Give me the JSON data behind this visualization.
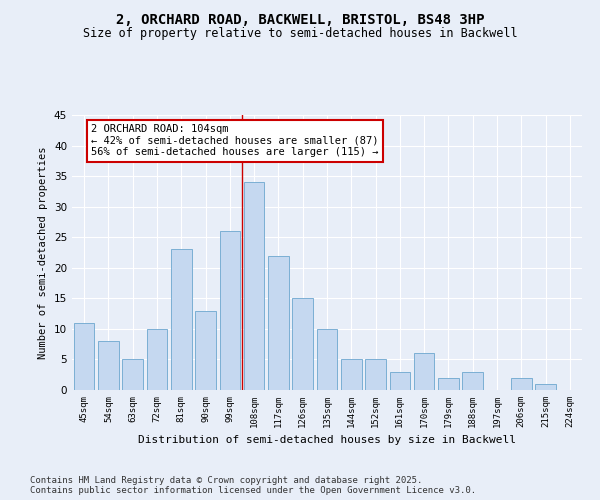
{
  "title1": "2, ORCHARD ROAD, BACKWELL, BRISTOL, BS48 3HP",
  "title2": "Size of property relative to semi-detached houses in Backwell",
  "xlabel": "Distribution of semi-detached houses by size in Backwell",
  "ylabel": "Number of semi-detached properties",
  "categories": [
    "45sqm",
    "54sqm",
    "63sqm",
    "72sqm",
    "81sqm",
    "90sqm",
    "99sqm",
    "108sqm",
    "117sqm",
    "126sqm",
    "135sqm",
    "144sqm",
    "152sqm",
    "161sqm",
    "170sqm",
    "179sqm",
    "188sqm",
    "197sqm",
    "206sqm",
    "215sqm",
    "224sqm"
  ],
  "values": [
    11,
    8,
    5,
    10,
    23,
    13,
    26,
    34,
    22,
    15,
    10,
    5,
    5,
    3,
    6,
    2,
    3,
    0,
    2,
    1,
    0
  ],
  "bar_color": "#c5d8f0",
  "bar_edge_color": "#7bafd4",
  "property_label": "2 ORCHARD ROAD: 104sqm",
  "pct_smaller": 42,
  "n_smaller": 87,
  "pct_larger": 56,
  "n_larger": 115,
  "vline_x_index": 6.5,
  "annotation_box_color": "#ffffff",
  "annotation_border_color": "#cc0000",
  "ylim": [
    0,
    45
  ],
  "yticks": [
    0,
    5,
    10,
    15,
    20,
    25,
    30,
    35,
    40,
    45
  ],
  "bg_color": "#e8eef8",
  "plot_bg_color": "#e8eef8",
  "footer": "Contains HM Land Registry data © Crown copyright and database right 2025.\nContains public sector information licensed under the Open Government Licence v3.0.",
  "title1_fontsize": 10,
  "title2_fontsize": 8.5,
  "xlabel_fontsize": 8,
  "ylabel_fontsize": 7.5,
  "footer_fontsize": 6.5,
  "annot_fontsize": 7.5
}
